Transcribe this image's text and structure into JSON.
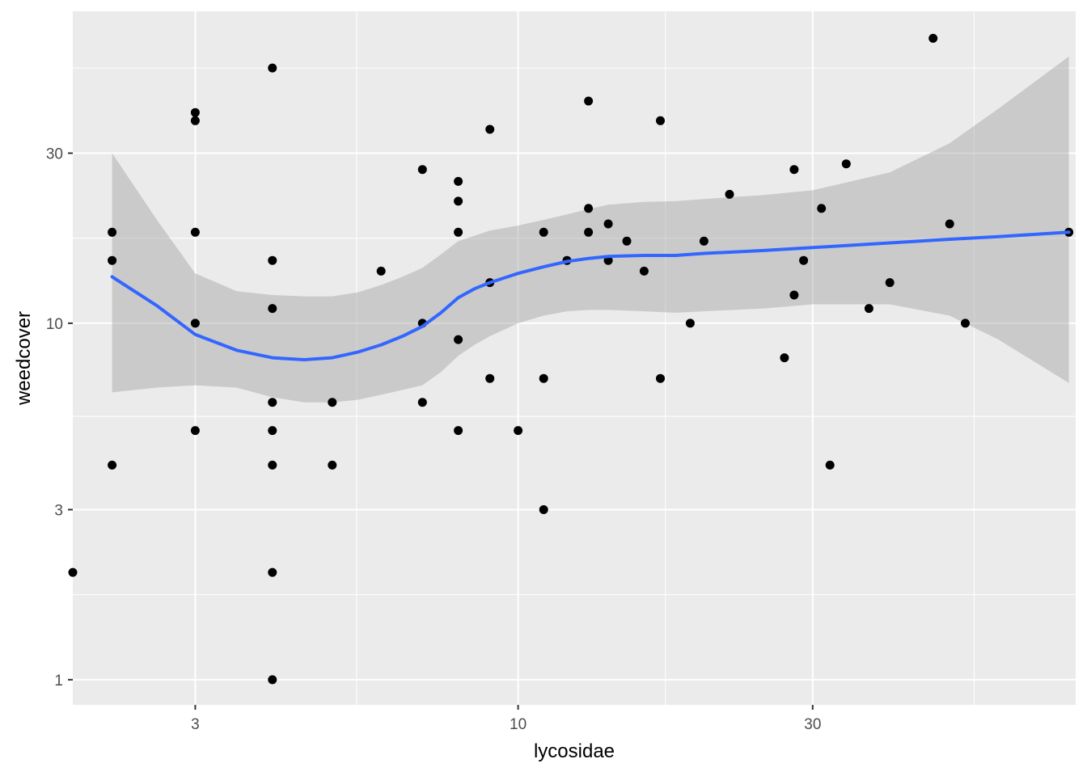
{
  "chart_data": {
    "type": "scatter",
    "title": "",
    "xlabel": "lycosidae",
    "ylabel": "weedcover",
    "x_scale": "log10",
    "y_scale": "log10",
    "xlim": [
      1.9,
      80
    ],
    "ylim": [
      0.85,
      75
    ],
    "x_ticks": [
      3,
      10,
      30
    ],
    "x_tick_labels": [
      "3",
      "10",
      "30"
    ],
    "y_ticks": [
      1,
      3,
      10,
      30
    ],
    "y_tick_labels": [
      "1",
      "3",
      "10",
      "30"
    ],
    "grid": true,
    "legend": "none",
    "colors": {
      "panel": "#ebebeb",
      "grid": "#ffffff",
      "points": "#000000",
      "smooth_line": "#3366ff",
      "ribbon": "#999999"
    },
    "points": [
      [
        1.9,
        2
      ],
      [
        2.2,
        4
      ],
      [
        2.2,
        15
      ],
      [
        2.2,
        18
      ],
      [
        3,
        5
      ],
      [
        3,
        10
      ],
      [
        3,
        18
      ],
      [
        3,
        37
      ],
      [
        3,
        39
      ],
      [
        4,
        1
      ],
      [
        4,
        2
      ],
      [
        4,
        4
      ],
      [
        4,
        5
      ],
      [
        4,
        6
      ],
      [
        4,
        11
      ],
      [
        4,
        15
      ],
      [
        4,
        52
      ],
      [
        5,
        4
      ],
      [
        5,
        6
      ],
      [
        6,
        14
      ],
      [
        7,
        6
      ],
      [
        7,
        10
      ],
      [
        7,
        27
      ],
      [
        8,
        5
      ],
      [
        8,
        9
      ],
      [
        8,
        18
      ],
      [
        8,
        22
      ],
      [
        8,
        25
      ],
      [
        9,
        7
      ],
      [
        9,
        13
      ],
      [
        9,
        35
      ],
      [
        10,
        5
      ],
      [
        11,
        3
      ],
      [
        11,
        7
      ],
      [
        11,
        18
      ],
      [
        12,
        15
      ],
      [
        13,
        18
      ],
      [
        13,
        21
      ],
      [
        13,
        42
      ],
      [
        14,
        15
      ],
      [
        14,
        19
      ],
      [
        15,
        17
      ],
      [
        16,
        14
      ],
      [
        17,
        7
      ],
      [
        17,
        37
      ],
      [
        19,
        10
      ],
      [
        20,
        17
      ],
      [
        22,
        23
      ],
      [
        27,
        8
      ],
      [
        28,
        12
      ],
      [
        28,
        27
      ],
      [
        29,
        15
      ],
      [
        31,
        21
      ],
      [
        32,
        4
      ],
      [
        34,
        28
      ],
      [
        37,
        11
      ],
      [
        40,
        13
      ],
      [
        47,
        63
      ],
      [
        50,
        19
      ],
      [
        53,
        10
      ],
      [
        78,
        18
      ]
    ],
    "smooth": {
      "x": [
        2.2,
        2.6,
        3,
        3.5,
        4,
        4.5,
        5,
        5.5,
        6,
        6.5,
        7,
        7.5,
        8,
        8.5,
        9,
        10,
        11,
        12,
        13,
        14,
        16,
        18,
        20,
        25,
        30,
        40,
        50,
        60,
        78
      ],
      "y": [
        13.5,
        11.2,
        9.3,
        8.4,
        8.0,
        7.9,
        8.0,
        8.3,
        8.7,
        9.2,
        9.8,
        10.7,
        11.8,
        12.5,
        13.0,
        13.8,
        14.4,
        14.9,
        15.2,
        15.4,
        15.5,
        15.5,
        15.7,
        16.0,
        16.3,
        16.8,
        17.2,
        17.5,
        18.0
      ],
      "lower": [
        6.4,
        6.6,
        6.7,
        6.6,
        6.2,
        6.0,
        6.0,
        6.1,
        6.3,
        6.5,
        6.7,
        7.3,
        8.1,
        8.7,
        9.2,
        10.0,
        10.5,
        10.8,
        10.9,
        10.9,
        10.8,
        10.7,
        10.8,
        11.0,
        11.3,
        11.3,
        10.5,
        9.0,
        6.8
      ],
      "upper": [
        30.0,
        19.5,
        13.8,
        12.3,
        12.0,
        11.9,
        11.9,
        12.2,
        12.8,
        13.5,
        14.3,
        15.6,
        17.0,
        17.6,
        18.2,
        18.8,
        19.5,
        20.2,
        20.9,
        21.5,
        21.9,
        22.0,
        22.3,
        22.9,
        23.6,
        26.5,
        32.0,
        40.0,
        56.0
      ]
    }
  }
}
